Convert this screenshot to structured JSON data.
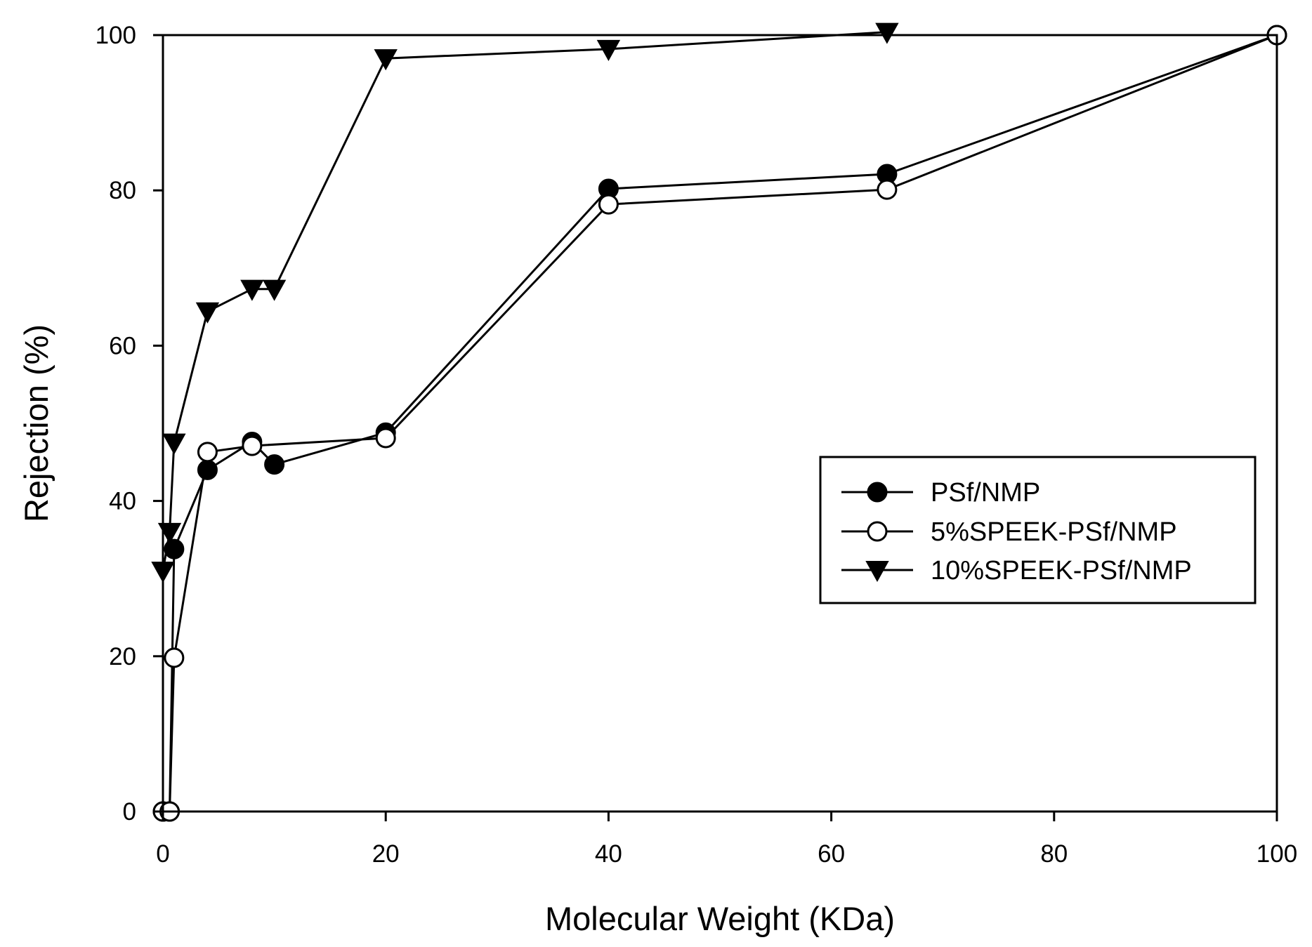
{
  "chart_data": {
    "type": "line",
    "title": "",
    "xlabel": "Molecular Weight (KDa)",
    "ylabel": "Rejection (%)",
    "xlim": [
      0,
      100
    ],
    "ylim": [
      0,
      100
    ],
    "xticks": [
      "0",
      "20",
      "40",
      "60",
      "80",
      "100"
    ],
    "yticks": [
      "0",
      "20",
      "40",
      "60",
      "80",
      "100"
    ],
    "grid": false,
    "legend_position": "right-middle",
    "colors": {
      "line": "#000000",
      "marker_fill_solid": "#000000",
      "marker_fill_open": "#ffffff",
      "background": "#ffffff"
    },
    "series": [
      {
        "name": "PSf/NMP",
        "marker": "filled-circle",
        "x": [
          0,
          0.6,
          1,
          4,
          8,
          10,
          20,
          40,
          65,
          100
        ],
        "values": [
          0,
          0,
          33.8,
          44,
          47.6,
          44.7,
          48.8,
          80.2,
          82.1,
          100
        ]
      },
      {
        "name": "5%SPEEK-PSf/NMP",
        "marker": "open-circle",
        "x": [
          0,
          0.6,
          1,
          4,
          8,
          20,
          40,
          65,
          100
        ],
        "values": [
          0,
          0,
          19.8,
          46.3,
          47.1,
          48.1,
          78.2,
          80.1,
          100
        ]
      },
      {
        "name": "10%SPEEK-PSf/NMP",
        "marker": "filled-triangle-down",
        "x": [
          0,
          0.6,
          1,
          4,
          8,
          10,
          20,
          40,
          65
        ],
        "values": [
          31,
          36,
          47.5,
          64.4,
          67.3,
          67.3,
          97,
          98.2,
          100.4
        ]
      }
    ]
  }
}
